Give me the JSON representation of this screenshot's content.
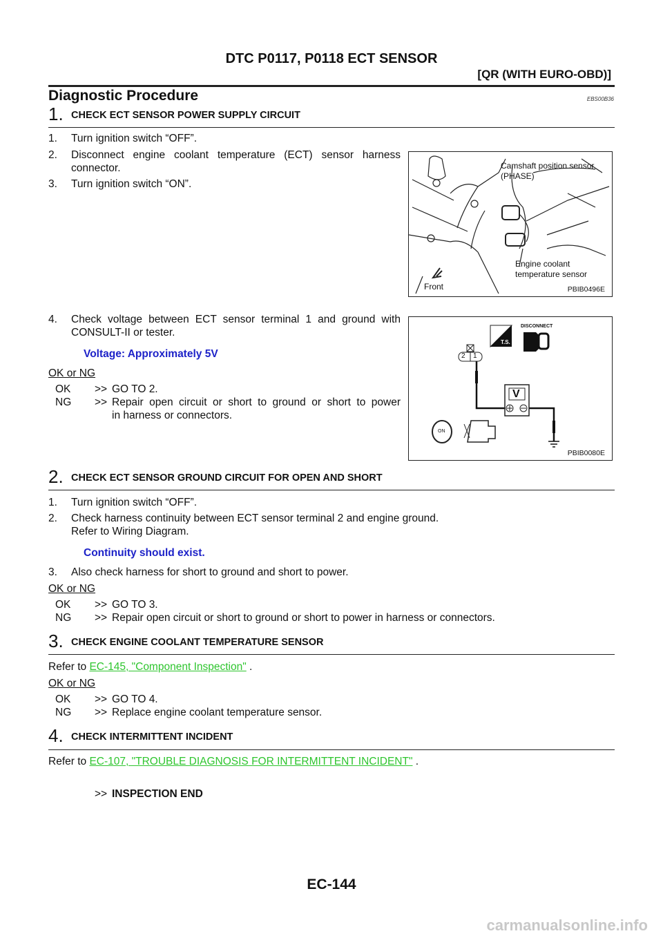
{
  "header": {
    "title": "DTC P0117, P0118 ECT SENSOR",
    "subtitle": "[QR (WITH EURO-OBD)]"
  },
  "section": {
    "title": "Diagnostic Procedure",
    "code": "EBS00B36"
  },
  "step1": {
    "num": "1.",
    "heading": "CHECK ECT SENSOR POWER SUPPLY CIRCUIT",
    "items": [
      "1.",
      "Turn ignition switch “OFF”.",
      "2.",
      "Disconnect engine coolant temperature (ECT) sensor harness",
      "connector.",
      "3.",
      "Turn ignition switch “ON”.",
      "4.",
      "Check voltage between ECT sensor terminal 1 and ground with",
      "CONSULT-II or tester."
    ],
    "spec": "Voltage: Approximately 5V",
    "oknghead": "OK or NG",
    "ok": {
      "k": "OK",
      ">": ">>",
      "t": "GO TO 2."
    },
    "ng": {
      "k": "NG",
      ">": ">>",
      "t": "Repair open circuit or short to ground or short to power",
      "t2": "in harness or connectors."
    },
    "fig1": {
      "labels": [
        "Camshaft position sensor",
        "(PHASE)",
        "Engine coolant",
        "temperature sensor",
        "Front"
      ],
      "id": "PBIB0496E"
    },
    "fig2": {
      "disconnect": "DISCONNECT",
      "ts": "T.S.",
      "pin2": "2",
      "pin1": "1",
      "meter": "V",
      "on": "ON",
      "id": "PBIB0080E"
    }
  },
  "step2": {
    "num": "2.",
    "heading": "CHECK ECT SENSOR GROUND CIRCUIT FOR OPEN AND SHORT",
    "items": [
      "1.",
      "Turn ignition switch “OFF”.",
      "2.",
      "Check harness continuity between ECT sensor terminal 2 and engine ground.",
      "Refer to Wiring Diagram.",
      "3.",
      "Also check harness for short to ground and short to power."
    ],
    "spec": "Continuity should exist.",
    "oknghead": "OK or NG",
    "ok": {
      "k": "OK",
      ">": ">>",
      "t": "GO TO 3."
    },
    "ng": {
      "k": "NG",
      ">": ">>",
      "t": "Repair open circuit or short to ground or short to power in harness or connectors."
    }
  },
  "step3": {
    "num": "3.",
    "heading": "CHECK ENGINE COOLANT TEMPERATURE SENSOR",
    "refer": "Refer to",
    "link": "EC-145, \"Component Inspection\"",
    "end": ".",
    "oknghead": "OK or NG",
    "ok": {
      "k": "OK",
      ">": ">>",
      "t": "GO TO 4."
    },
    "ng": {
      "k": "NG",
      ">": ">>",
      "t": "Replace engine coolant temperature sensor."
    }
  },
  "step4": {
    "num": "4.",
    "heading": "CHECK INTERMITTENT INCIDENT",
    "refer": "Refer to",
    "link": "EC-107, \"TROUBLE DIAGNOSIS FOR INTERMITTENT INCIDENT\"",
    "end": ".",
    "final_arrow": ">>",
    "final": "INSPECTION END"
  },
  "footer": {
    "page": "EC-144",
    "watermark": "carmanualsonline.info"
  },
  "colors": {
    "spec": "#1d22c8",
    "link": "#2ec52e"
  }
}
